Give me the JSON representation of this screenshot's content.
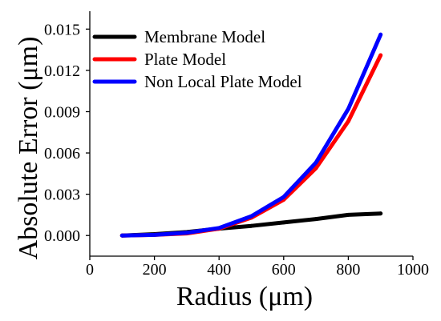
{
  "chart_data": {
    "type": "line",
    "title": "",
    "xlabel": "Radius (μm)",
    "ylabel": "Absolute Error (μm)",
    "xlim": [
      0,
      1000
    ],
    "ylim": [
      -0.0015,
      0.0163
    ],
    "x_ticks": [
      0,
      200,
      400,
      600,
      800,
      1000
    ],
    "x_tick_labels": [
      "0",
      "200",
      "400",
      "600",
      "800",
      "1000"
    ],
    "y_ticks": [
      0,
      0.003,
      0.006,
      0.009,
      0.012,
      0.015
    ],
    "y_tick_labels": [
      "0.000",
      "0.003",
      "0.006",
      "0.009",
      "0.012",
      "0.015"
    ],
    "grid": false,
    "legend_position": "top-left",
    "x": [
      100,
      200,
      300,
      400,
      500,
      600,
      700,
      800,
      900
    ],
    "series": [
      {
        "name": "Membrane Model",
        "color": "#000000",
        "values": [
          0.0,
          0.0001,
          0.00025,
          0.0005,
          0.0007,
          0.00095,
          0.0012,
          0.0015,
          0.0016
        ]
      },
      {
        "name": "Plate Model",
        "color": "#ff0000",
        "values": [
          0.0,
          5e-05,
          0.00015,
          0.0005,
          0.0013,
          0.0026,
          0.0049,
          0.0083,
          0.0131
        ]
      },
      {
        "name": "Non Local Plate Model",
        "color": "#0000ff",
        "values": [
          0.0,
          5e-05,
          0.0002,
          0.00055,
          0.0014,
          0.0028,
          0.0053,
          0.0092,
          0.0146
        ]
      }
    ]
  }
}
